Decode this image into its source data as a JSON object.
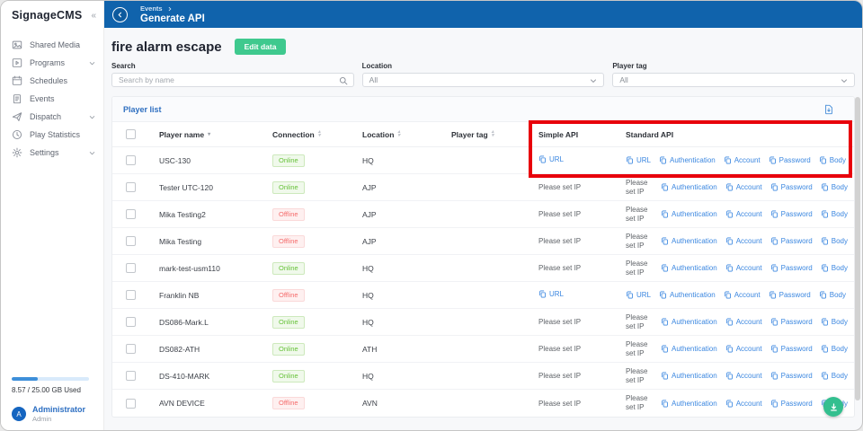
{
  "app": {
    "name": "SignageCMS",
    "collapse_icon": "«"
  },
  "sidebar": {
    "items": [
      {
        "label": "Shared Media",
        "icon": "image",
        "expandable": false
      },
      {
        "label": "Programs",
        "icon": "program",
        "expandable": true
      },
      {
        "label": "Schedules",
        "icon": "calendar",
        "expandable": false
      },
      {
        "label": "Events",
        "icon": "clipboard",
        "expandable": false
      },
      {
        "label": "Dispatch",
        "icon": "send",
        "expandable": true
      },
      {
        "label": "Play Statistics",
        "icon": "clock",
        "expandable": false
      },
      {
        "label": "Settings",
        "icon": "gear",
        "expandable": true
      }
    ],
    "storage": {
      "used_label": "8.57 / 25.00 GB Used",
      "percent": 34
    },
    "user": {
      "name": "Administrator",
      "role": "Admin",
      "avatar_initial": "A"
    }
  },
  "header": {
    "breadcrumb": "Events",
    "title": "Generate API"
  },
  "page": {
    "title": "fire alarm escape",
    "edit_button": "Edit data"
  },
  "filters": {
    "search": {
      "label": "Search",
      "placeholder": "Search by name"
    },
    "location": {
      "label": "Location",
      "value": "All"
    },
    "player_tag": {
      "label": "Player tag",
      "value": "All"
    }
  },
  "table": {
    "title": "Player list",
    "columns": [
      "Player name",
      "Connection",
      "Location",
      "Player tag",
      "Simple API",
      "Standard API"
    ],
    "url_label": "URL",
    "no_ip_text": "Please set IP",
    "standard_links": [
      "Authentication",
      "Account",
      "Password",
      "Body"
    ],
    "rows": [
      {
        "name": "USC-130",
        "connection": "Online",
        "location": "HQ",
        "player_tag": "",
        "simple_api": "url",
        "standard_api": "url"
      },
      {
        "name": "Tester UTC-120",
        "connection": "Online",
        "location": "AJP",
        "player_tag": "",
        "simple_api": "noip",
        "standard_api": "noip"
      },
      {
        "name": "Mika Testing2",
        "connection": "Offline",
        "location": "AJP",
        "player_tag": "",
        "simple_api": "noip",
        "standard_api": "noip"
      },
      {
        "name": "Mika Testing",
        "connection": "Offline",
        "location": "AJP",
        "player_tag": "",
        "simple_api": "noip",
        "standard_api": "noip"
      },
      {
        "name": "mark-test-usm110",
        "connection": "Online",
        "location": "HQ",
        "player_tag": "",
        "simple_api": "noip",
        "standard_api": "noip"
      },
      {
        "name": "Franklin NB",
        "connection": "Offline",
        "location": "HQ",
        "player_tag": "",
        "simple_api": "url",
        "standard_api": "url"
      },
      {
        "name": "DS086-Mark.L",
        "connection": "Online",
        "location": "HQ",
        "player_tag": "",
        "simple_api": "noip",
        "standard_api": "noip"
      },
      {
        "name": "DS082-ATH",
        "connection": "Online",
        "location": "ATH",
        "player_tag": "",
        "simple_api": "noip",
        "standard_api": "noip"
      },
      {
        "name": "DS-410-MARK",
        "connection": "Online",
        "location": "HQ",
        "player_tag": "",
        "simple_api": "noip",
        "standard_api": "noip"
      },
      {
        "name": "AVN DEVICE",
        "connection": "Offline",
        "location": "AVN",
        "player_tag": "",
        "simple_api": "noip",
        "standard_api": "noip"
      }
    ]
  },
  "colors": {
    "topbar_blue": "#1063ac",
    "link_blue": "#3b87e0",
    "edit_green": "#3fc98e",
    "fab_green": "#33bf8f",
    "online_green": "#67c23a",
    "offline_red": "#f56c6c",
    "highlight_red": "#e8000b"
  }
}
